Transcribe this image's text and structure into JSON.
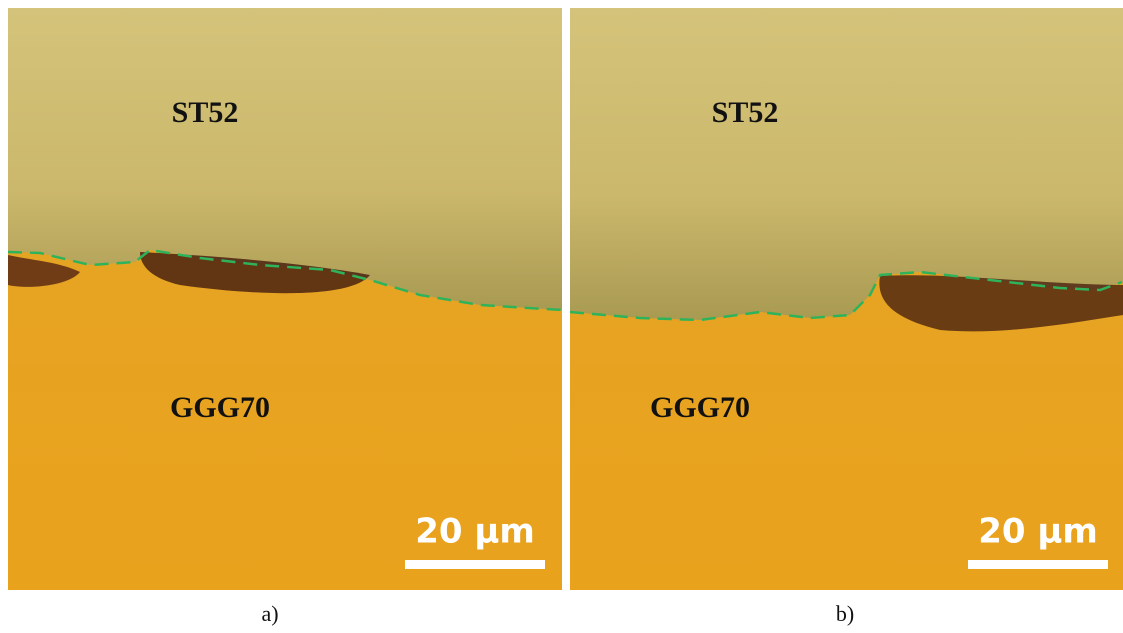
{
  "panels": [
    {
      "upper_label": "ST52",
      "lower_label": "GGG70",
      "scale_label": "20 µm",
      "caption": "a)"
    },
    {
      "upper_label": "ST52",
      "lower_label": "GGG70",
      "scale_label": "20 µm",
      "caption": "b)"
    }
  ]
}
